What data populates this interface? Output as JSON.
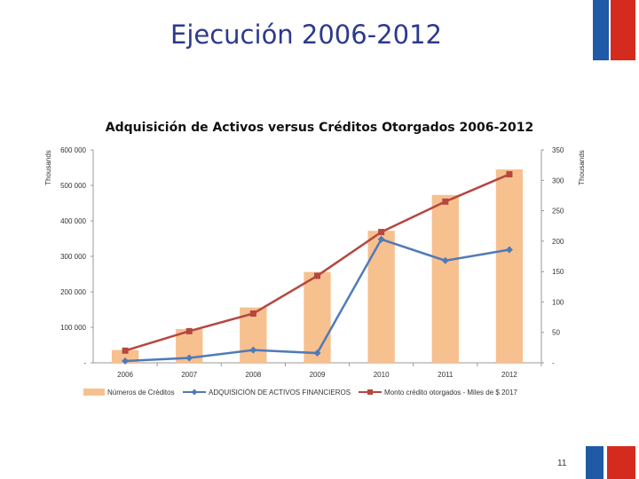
{
  "slide": {
    "title": "Ejecución 2006-2012",
    "page_number": "11"
  },
  "colors": {
    "bar": "#f7c08f",
    "series_blue": "#4f7ab8",
    "series_red": "#b5473f",
    "flag_blue": "#1f5aa6",
    "flag_red": "#d52b1e"
  },
  "chart_data": {
    "type": "bar",
    "title": "Adquisición de Activos versus Créditos Otorgados 2006-2012",
    "categories": [
      "2006",
      "2007",
      "2008",
      "2009",
      "2010",
      "2011",
      "2012"
    ],
    "left_axis": {
      "label": "Thousands",
      "range": [
        0,
        600000
      ],
      "ticks": [
        "-",
        "100 000",
        "200 000",
        "300 000",
        "400 000",
        "500 000",
        "600 000"
      ]
    },
    "right_axis": {
      "label": "Thousands",
      "range": [
        0,
        350
      ],
      "ticks": [
        "-",
        "50",
        "100",
        "150",
        "200",
        "250",
        "300",
        "350"
      ]
    },
    "series": [
      {
        "name": "Números de Créditos",
        "type": "bar",
        "axis": "left",
        "values": [
          36000,
          95000,
          156000,
          256000,
          372000,
          473000,
          545000
        ]
      },
      {
        "name": "ADQUISICIÓN DE ACTIVOS FINANCIEROS",
        "type": "line",
        "axis": "right",
        "marker": "diamond",
        "values": [
          3,
          8,
          21,
          16,
          203,
          168,
          186
        ]
      },
      {
        "name": "Monto crédito otorgados - Miles de $ 2017",
        "type": "line",
        "axis": "right",
        "marker": "square",
        "values": [
          20,
          52,
          81,
          143,
          215,
          265,
          310
        ]
      }
    ],
    "legend_position": "bottom"
  }
}
